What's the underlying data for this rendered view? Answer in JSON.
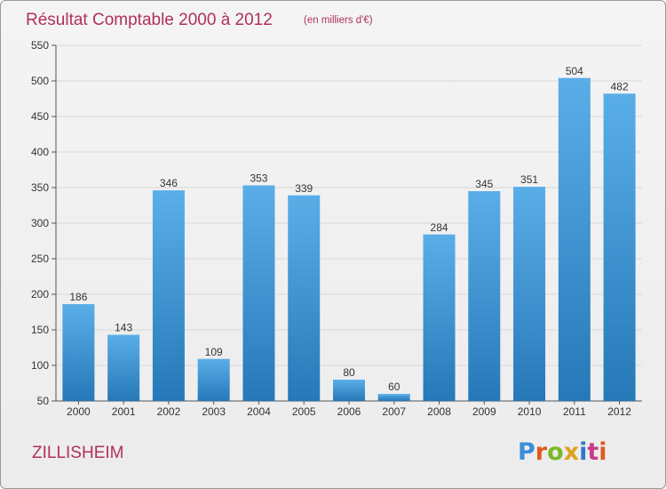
{
  "header": {
    "title": "Résultat Comptable 2000 à 2012",
    "subtitle": "(en milliers d'€)"
  },
  "footer": {
    "city": "ZILLISHEIM",
    "logo_letters": [
      "P",
      "r",
      "o",
      "x",
      "i",
      "t",
      "i"
    ],
    "logo_colors": [
      "#3a8fd8",
      "#e05a1e",
      "#7ab829",
      "#e0a21e",
      "#2f77c6",
      "#c83b8a",
      "#e05a1e"
    ]
  },
  "colors": {
    "bar_light": "#5aaee8",
    "bar_dark": "#2678b8",
    "title": "#b0305f",
    "grid": "#d8d8d8"
  },
  "chart_data": {
    "type": "bar",
    "categories": [
      "2000",
      "2001",
      "2002",
      "2003",
      "2004",
      "2005",
      "2006",
      "2007",
      "2008",
      "2009",
      "2010",
      "2011",
      "2012"
    ],
    "values": [
      186,
      143,
      346,
      109,
      353,
      339,
      80,
      60,
      284,
      345,
      351,
      504,
      482
    ],
    "data_labels": [
      "186",
      "143",
      "346",
      "109",
      "353",
      "339",
      "80",
      "60",
      "284",
      "345",
      "351",
      "504",
      "482"
    ],
    "ylim": [
      50,
      550
    ],
    "yticks": [
      "50",
      "100",
      "150",
      "200",
      "250",
      "300",
      "350",
      "400",
      "450",
      "500",
      "550"
    ],
    "grid": true,
    "xlabel": "",
    "ylabel": ""
  }
}
